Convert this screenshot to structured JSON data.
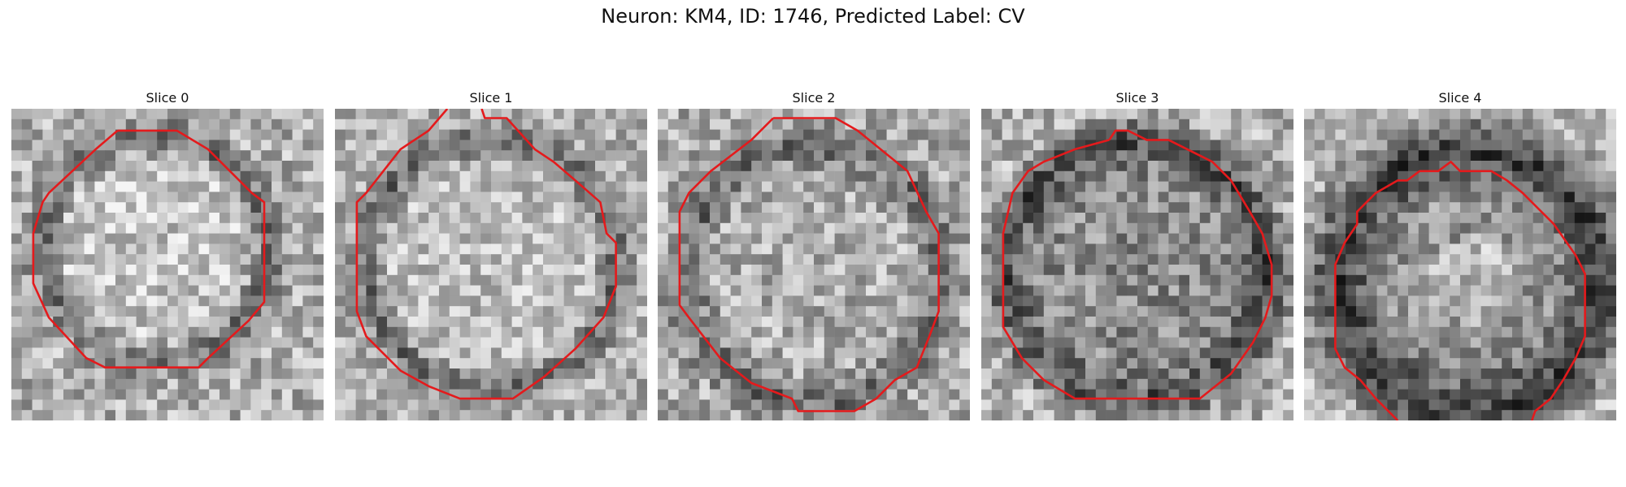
{
  "figure": {
    "title": "Neuron: KM4, ID: 1746, Predicted Label: CV"
  },
  "panels": [
    {
      "title": "Slice 0"
    },
    {
      "title": "Slice 1"
    },
    {
      "title": "Slice 2"
    },
    {
      "title": "Slice 3"
    },
    {
      "title": "Slice 4"
    }
  ],
  "colors": {
    "contour": "#e41a1c",
    "background": "#ffffff"
  }
}
